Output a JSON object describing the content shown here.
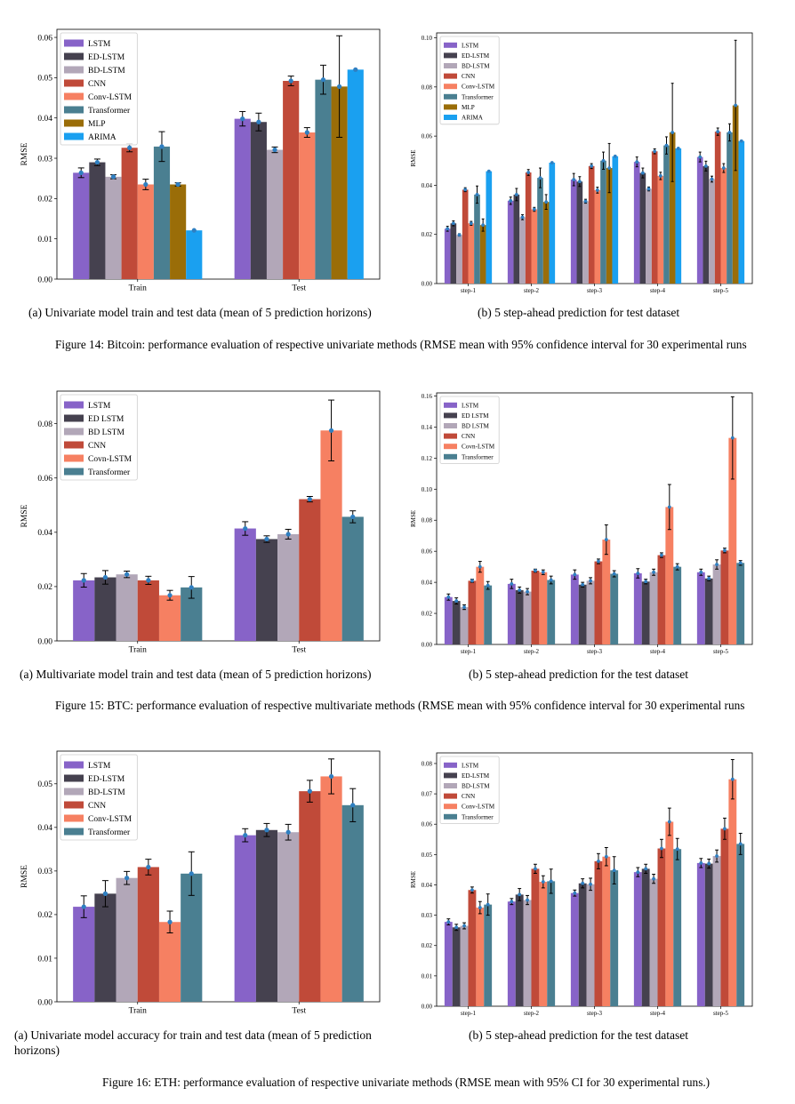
{
  "series_colors": {
    "LSTM": "#8763c8",
    "ED-LSTM": "#45414f",
    "BD-LSTM": "#b2a7b8",
    "CNN": "#c04a39",
    "Conv-LSTM": "#f68062",
    "Transformer": "#4a7f91",
    "MLP": "#9a6d08",
    "ARIMA": "#1aa0f0"
  },
  "marker_color": "#2f7fc1",
  "figures": [
    {
      "caption": "Figure 14: Bitcoin: performance evaluation of respective univariate methods (RMSE mean with 95% confidence interval for 30 experimental runs",
      "panel_a_caption": "(a) Univariate model train and test data (mean of 5 prediction horizons)",
      "panel_b_caption": "(b) 5 step-ahead prediction for test dataset"
    },
    {
      "caption": "Figure 15: BTC: performance evaluation of respective multivariate methods (RMSE mean with 95% confidence interval for 30 experimental runs",
      "panel_a_caption": "(a) Multivariate model train and test data (mean of 5 prediction horizons)",
      "panel_b_caption": "(b) 5 step-ahead prediction for the test dataset"
    },
    {
      "caption": "Figure 16: ETH: performance evaluation of respective univariate methods (RMSE mean with 95% CI for 30 experimental runs.)",
      "panel_a_caption": "(a) Univariate model accuracy for train and test data (mean of 5 prediction horizons)",
      "panel_b_caption": "(b) 5 step-ahead prediction for the test dataset"
    }
  ],
  "chart_data": [
    {
      "id": "fig14a",
      "type": "bar",
      "ylabel": "RMSE",
      "ylim": [
        0,
        0.062
      ],
      "yticks": [
        "0.00",
        "0.01",
        "0.02",
        "0.03",
        "0.04",
        "0.05",
        "0.06"
      ],
      "ytick_values": [
        0,
        0.01,
        0.02,
        0.03,
        0.04,
        0.05,
        0.06
      ],
      "categories": [
        "Train",
        "Test"
      ],
      "legend_position": "top-left",
      "series": [
        {
          "name": "LSTM",
          "color_key": "LSTM",
          "values": [
            0.0264,
            0.0398
          ],
          "err": [
            0.0012,
            0.0018
          ]
        },
        {
          "name": "ED-LSTM",
          "color_key": "ED-LSTM",
          "values": [
            0.029,
            0.039
          ],
          "err": [
            0.0008,
            0.0022
          ]
        },
        {
          "name": "BD-LSTM",
          "color_key": "BD-LSTM",
          "values": [
            0.0254,
            0.0321
          ],
          "err": [
            0.0005,
            0.0007
          ]
        },
        {
          "name": "CNN",
          "color_key": "CNN",
          "values": [
            0.0326,
            0.0492
          ],
          "err": [
            0.001,
            0.0012
          ]
        },
        {
          "name": "Conv-LSTM",
          "color_key": "Conv-LSTM",
          "values": [
            0.0235,
            0.0364
          ],
          "err": [
            0.0013,
            0.0012
          ]
        },
        {
          "name": "Transformer",
          "color_key": "Transformer",
          "values": [
            0.0329,
            0.0495
          ],
          "err": [
            0.0037,
            0.0036
          ]
        },
        {
          "name": "MLP",
          "color_key": "MLP",
          "values": [
            0.0235,
            0.0478
          ],
          "err": [
            0.0004,
            0.0126
          ]
        },
        {
          "name": "ARIMA",
          "color_key": "ARIMA",
          "values": [
            0.0121,
            0.052
          ],
          "err": [
            0,
            0
          ]
        }
      ]
    },
    {
      "id": "fig14b",
      "type": "bar",
      "ylabel": "RMSE",
      "ylim": [
        0,
        0.102
      ],
      "yticks": [
        "0.00",
        "0.02",
        "0.04",
        "0.06",
        "0.08",
        "0.10"
      ],
      "ytick_values": [
        0,
        0.02,
        0.04,
        0.06,
        0.08,
        0.1
      ],
      "categories": [
        "step-1",
        "step-2",
        "step-3",
        "step-4",
        "step-5"
      ],
      "legend_position": "top-left",
      "series": [
        {
          "name": "LSTM",
          "color_key": "LSTM",
          "values": [
            0.0223,
            0.0337,
            0.0423,
            0.0495,
            0.0515
          ],
          "err": [
            0.001,
            0.0015,
            0.0025,
            0.002,
            0.002
          ]
        },
        {
          "name": "ED-LSTM",
          "color_key": "ED-LSTM",
          "values": [
            0.0245,
            0.0362,
            0.0415,
            0.045,
            0.0478
          ],
          "err": [
            0.001,
            0.0025,
            0.002,
            0.002,
            0.002
          ]
        },
        {
          "name": "BD-LSTM",
          "color_key": "BD-LSTM",
          "values": [
            0.0198,
            0.027,
            0.0335,
            0.0385,
            0.0425
          ],
          "err": [
            0.0005,
            0.001,
            0.0008,
            0.0008,
            0.0012
          ]
        },
        {
          "name": "CNN",
          "color_key": "CNN",
          "values": [
            0.0382,
            0.0452,
            0.0478,
            0.0538,
            0.0618
          ],
          "err": [
            0.0008,
            0.0012,
            0.001,
            0.001,
            0.0015
          ]
        },
        {
          "name": "Conv-LSTM",
          "color_key": "Conv-LSTM",
          "values": [
            0.0245,
            0.0302,
            0.038,
            0.0438,
            0.047
          ],
          "err": [
            0.0008,
            0.0008,
            0.0012,
            0.0015,
            0.0018
          ]
        },
        {
          "name": "Transformer",
          "color_key": "Transformer",
          "values": [
            0.0362,
            0.043,
            0.05,
            0.0562,
            0.0615
          ],
          "err": [
            0.0035,
            0.004,
            0.0035,
            0.0035,
            0.0035
          ]
        },
        {
          "name": "MLP",
          "color_key": "MLP",
          "values": [
            0.0238,
            0.0332,
            0.047,
            0.0615,
            0.0725
          ],
          "err": [
            0.0025,
            0.003,
            0.01,
            0.02,
            0.0265
          ]
        },
        {
          "name": "ARIMA",
          "color_key": "ARIMA",
          "values": [
            0.0457,
            0.0492,
            0.0518,
            0.055,
            0.058
          ],
          "err": [
            0,
            0,
            0,
            0,
            0
          ]
        }
      ]
    },
    {
      "id": "fig15a",
      "type": "bar",
      "ylabel": "RMSE",
      "ylim": [
        0,
        0.092
      ],
      "yticks": [
        "0.00",
        "0.02",
        "0.04",
        "0.06",
        "0.08"
      ],
      "ytick_values": [
        0,
        0.02,
        0.04,
        0.06,
        0.08
      ],
      "categories": [
        "Train",
        "Test"
      ],
      "legend_position": "top-left",
      "series": [
        {
          "name": "LSTM",
          "color_key": "LSTM",
          "values": [
            0.0223,
            0.0414
          ],
          "err": [
            0.0025,
            0.0025
          ]
        },
        {
          "name": "ED LSTM",
          "color_key": "ED-LSTM",
          "values": [
            0.0234,
            0.0375
          ],
          "err": [
            0.0025,
            0.0012
          ]
        },
        {
          "name": "BD LSTM",
          "color_key": "BD-LSTM",
          "values": [
            0.0245,
            0.0393
          ],
          "err": [
            0.0012,
            0.0018
          ]
        },
        {
          "name": "CNN",
          "color_key": "CNN",
          "values": [
            0.0223,
            0.0522
          ],
          "err": [
            0.0015,
            0.001
          ]
        },
        {
          "name": "Covn-LSTM",
          "color_key": "Conv-LSTM",
          "values": [
            0.0168,
            0.0775
          ],
          "err": [
            0.0018,
            0.0112
          ]
        },
        {
          "name": "Transformer",
          "color_key": "Transformer",
          "values": [
            0.0197,
            0.0457
          ],
          "err": [
            0.004,
            0.0022
          ]
        }
      ]
    },
    {
      "id": "fig15b",
      "type": "bar",
      "ylabel": "RMSE",
      "ylim": [
        0,
        0.162
      ],
      "yticks": [
        "0.00",
        "0.02",
        "0.04",
        "0.06",
        "0.08",
        "0.10",
        "0.12",
        "0.14",
        "0.16"
      ],
      "ytick_values": [
        0,
        0.02,
        0.04,
        0.06,
        0.08,
        0.1,
        0.12,
        0.14,
        0.16
      ],
      "categories": [
        "step-1",
        "step-2",
        "step-3",
        "step-4",
        "step-5"
      ],
      "legend_position": "top-left",
      "series": [
        {
          "name": "LSTM",
          "color_key": "LSTM",
          "values": [
            0.0305,
            0.039,
            0.045,
            0.0458,
            0.0465
          ],
          "err": [
            0.002,
            0.003,
            0.003,
            0.003,
            0.002
          ]
        },
        {
          "name": "ED LSTM",
          "color_key": "ED-LSTM",
          "values": [
            0.028,
            0.035,
            0.0385,
            0.0405,
            0.0425
          ],
          "err": [
            0.002,
            0.002,
            0.0015,
            0.0015,
            0.0015
          ]
        },
        {
          "name": "BD LSTM",
          "color_key": "BD-LSTM",
          "values": [
            0.024,
            0.034,
            0.041,
            0.0465,
            0.0515
          ],
          "err": [
            0.0015,
            0.002,
            0.002,
            0.002,
            0.003
          ]
        },
        {
          "name": "CNN",
          "color_key": "CNN",
          "values": [
            0.041,
            0.0475,
            0.0535,
            0.0575,
            0.0605
          ],
          "err": [
            0.001,
            0.001,
            0.0015,
            0.0015,
            0.0015
          ]
        },
        {
          "name": "Covn-LSTM",
          "color_key": "Conv-LSTM",
          "values": [
            0.05,
            0.0465,
            0.0675,
            0.0885,
            0.133
          ],
          "err": [
            0.0035,
            0.0015,
            0.0095,
            0.0145,
            0.0265
          ]
        },
        {
          "name": "Transformer",
          "color_key": "Transformer",
          "values": [
            0.038,
            0.0415,
            0.0455,
            0.05,
            0.0525
          ],
          "err": [
            0.0025,
            0.0025,
            0.002,
            0.002,
            0.0015
          ]
        }
      ]
    },
    {
      "id": "fig16a",
      "type": "bar",
      "ylabel": "RMSE",
      "ylim": [
        0,
        0.0575
      ],
      "yticks": [
        "0.00",
        "0.01",
        "0.02",
        "0.03",
        "0.04",
        "0.05"
      ],
      "ytick_values": [
        0,
        0.01,
        0.02,
        0.03,
        0.04,
        0.05
      ],
      "categories": [
        "Train",
        "Test"
      ],
      "legend_position": "top-left",
      "series": [
        {
          "name": "LSTM",
          "color_key": "LSTM",
          "values": [
            0.0218,
            0.0382
          ],
          "err": [
            0.0025,
            0.0015
          ]
        },
        {
          "name": "ED-LSTM",
          "color_key": "ED-LSTM",
          "values": [
            0.0248,
            0.0394
          ],
          "err": [
            0.003,
            0.0015
          ]
        },
        {
          "name": "BD-LSTM",
          "color_key": "BD-LSTM",
          "values": [
            0.0284,
            0.0389
          ],
          "err": [
            0.0015,
            0.0018
          ]
        },
        {
          "name": "CNN",
          "color_key": "CNN",
          "values": [
            0.0309,
            0.0483
          ],
          "err": [
            0.0018,
            0.0025
          ]
        },
        {
          "name": "Conv-LSTM",
          "color_key": "Conv-LSTM",
          "values": [
            0.0183,
            0.0517
          ],
          "err": [
            0.0025,
            0.004
          ]
        },
        {
          "name": "Transformer",
          "color_key": "Transformer",
          "values": [
            0.0294,
            0.0451
          ],
          "err": [
            0.005,
            0.0038
          ]
        }
      ]
    },
    {
      "id": "fig16b",
      "type": "bar",
      "ylabel": "RMSE",
      "ylim": [
        0,
        0.0835
      ],
      "yticks": [
        "0.00",
        "0.01",
        "0.02",
        "0.03",
        "0.04",
        "0.05",
        "0.06",
        "0.07",
        "0.08"
      ],
      "ytick_values": [
        0,
        0.01,
        0.02,
        0.03,
        0.04,
        0.05,
        0.06,
        0.07,
        0.08
      ],
      "categories": [
        "step-1",
        "step-2",
        "step-3",
        "step-4",
        "step-5"
      ],
      "legend_position": "top-left",
      "series": [
        {
          "name": "LSTM",
          "color_key": "LSTM",
          "values": [
            0.0278,
            0.0345,
            0.0373,
            0.0442,
            0.0472
          ],
          "err": [
            0.001,
            0.001,
            0.001,
            0.0015,
            0.0015
          ]
        },
        {
          "name": "ED-LSTM",
          "color_key": "ED-LSTM",
          "values": [
            0.026,
            0.0368,
            0.0405,
            0.0453,
            0.047
          ],
          "err": [
            0.001,
            0.002,
            0.0015,
            0.0015,
            0.0015
          ]
        },
        {
          "name": "BD-LSTM",
          "color_key": "BD-LSTM",
          "values": [
            0.0265,
            0.035,
            0.0402,
            0.042,
            0.0495
          ],
          "err": [
            0.001,
            0.0015,
            0.002,
            0.0015,
            0.002
          ]
        },
        {
          "name": "CNN",
          "color_key": "CNN",
          "values": [
            0.0383,
            0.0453,
            0.0478,
            0.052,
            0.0585
          ],
          "err": [
            0.001,
            0.0015,
            0.0025,
            0.003,
            0.0035
          ]
        },
        {
          "name": "Conv-LSTM",
          "color_key": "Conv-LSTM",
          "values": [
            0.0325,
            0.041,
            0.0493,
            0.0608,
            0.0748
          ],
          "err": [
            0.002,
            0.002,
            0.003,
            0.0045,
            0.0065
          ]
        },
        {
          "name": "Transformer",
          "color_key": "Transformer",
          "values": [
            0.0335,
            0.0412,
            0.0448,
            0.0518,
            0.0535
          ],
          "err": [
            0.0035,
            0.004,
            0.0045,
            0.0035,
            0.0035
          ]
        }
      ]
    }
  ]
}
